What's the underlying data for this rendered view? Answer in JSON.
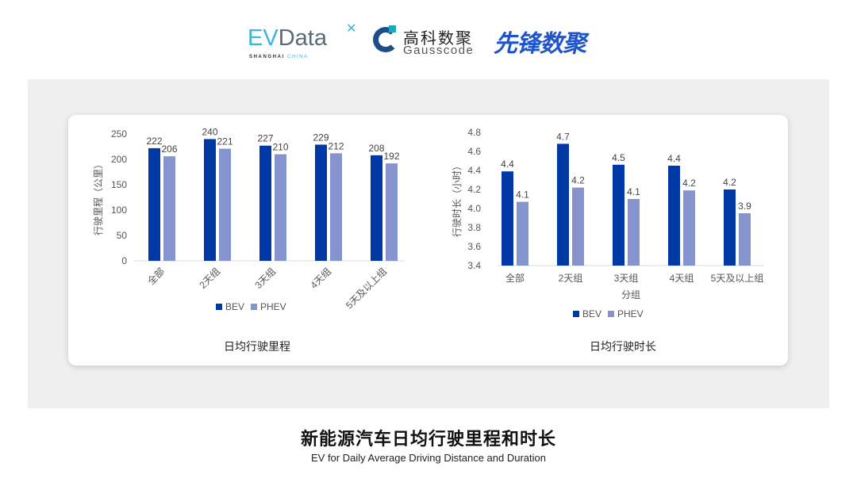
{
  "logos": {
    "evdata": {
      "ev": "EV",
      "rest": "Data",
      "sub_a": "SHANGHAI",
      "sub_b": "CHINA"
    },
    "gausscode": {
      "cn": "高科数聚",
      "en": "Gausscode"
    },
    "xianfeng": "先锋数聚"
  },
  "colors": {
    "bev": "#0039a6",
    "phev": "#8594cf",
    "panel": "#efefef"
  },
  "footer": {
    "title": "新能源汽车日均行驶里程和时长",
    "subtitle": "EV for Daily Average Driving Distance and Duration"
  },
  "chart_data": [
    {
      "type": "bar",
      "title": "日均行驶里程",
      "ylabel": "行驶里程（公里）",
      "xlabel": "",
      "categories": [
        "全部",
        "2天组",
        "3天组",
        "4天组",
        "5天及以上组"
      ],
      "ylim": [
        0,
        250
      ],
      "yticks": [
        "0",
        "50",
        "100",
        "150",
        "200",
        "250"
      ],
      "grid": false,
      "legend": "bottom",
      "series": [
        {
          "name": "BEV",
          "values": [
            222,
            240,
            227,
            229,
            208
          ],
          "labels": [
            "222",
            "240",
            "227",
            "229",
            "208"
          ]
        },
        {
          "name": "PHEV",
          "values": [
            206,
            221,
            210,
            212,
            192
          ],
          "labels": [
            "206",
            "221",
            "210",
            "212",
            "192"
          ]
        }
      ]
    },
    {
      "type": "bar",
      "title": "日均行驶时长",
      "ylabel": "行驶时长（小时）",
      "xlabel": "分组",
      "categories": [
        "全部",
        "2天组",
        "3天组",
        "4天组",
        "5天及以上组"
      ],
      "ylim": [
        3.4,
        4.8
      ],
      "yticks": [
        "3.4",
        "3.6",
        "3.8",
        "4.0",
        "4.2",
        "4.4",
        "4.6",
        "4.8"
      ],
      "grid": false,
      "legend": "bottom",
      "series": [
        {
          "name": "BEV",
          "values": [
            4.39,
            4.68,
            4.46,
            4.45,
            4.2
          ],
          "labels": [
            "4.4",
            "4.7",
            "4.5",
            "4.4",
            "4.2"
          ]
        },
        {
          "name": "PHEV",
          "values": [
            4.07,
            4.22,
            4.1,
            4.19,
            3.95
          ],
          "labels": [
            "4.1",
            "4.2",
            "4.1",
            "4.2",
            "3.9"
          ]
        }
      ]
    }
  ]
}
